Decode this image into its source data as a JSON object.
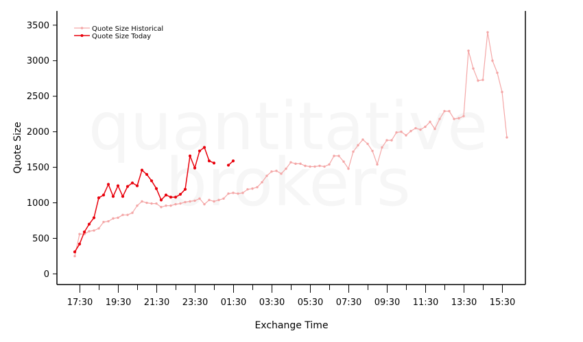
{
  "watermark": {
    "line1": "quantitative",
    "line2": "brokers"
  },
  "chart_data": {
    "type": "line",
    "title": "",
    "xlabel": "Exchange Time",
    "ylabel": "Quote Size",
    "ylim": [
      -150,
      3700
    ],
    "y_ticks": [
      0,
      500,
      1000,
      1500,
      2000,
      2500,
      3000,
      3500
    ],
    "x_tick_labels": [
      "17:30",
      "19:30",
      "21:30",
      "23:30",
      "01:30",
      "03:30",
      "05:30",
      "07:30",
      "09:30",
      "11:30",
      "13:30",
      "15:30"
    ],
    "x_minor_ticks_per_label": 2,
    "grid": false,
    "legend_position": "top-left",
    "series": [
      {
        "name": "Quote Size Historical",
        "color": "#f4a6a6",
        "values": [
          250,
          560,
          560,
          600,
          610,
          640,
          730,
          740,
          780,
          790,
          830,
          830,
          860,
          960,
          1020,
          1000,
          990,
          990,
          940,
          960,
          960,
          980,
          990,
          1010,
          1020,
          1030,
          1060,
          980,
          1040,
          1020,
          1040,
          1060,
          1130,
          1140,
          1130,
          1140,
          1190,
          1200,
          1220,
          1290,
          1380,
          1440,
          1450,
          1410,
          1480,
          1570,
          1550,
          1550,
          1520,
          1510,
          1510,
          1520,
          1510,
          1540,
          1660,
          1660,
          1580,
          1480,
          1720,
          1810,
          1890,
          1830,
          1730,
          1540,
          1780,
          1880,
          1880,
          1990,
          2000,
          1950,
          2010,
          2050,
          2030,
          2070,
          2140,
          2040,
          2180,
          2290,
          2290,
          2180,
          2190,
          2220,
          3140,
          2890,
          2720,
          2730,
          3400,
          3000,
          2830,
          2560,
          1920
        ]
      },
      {
        "name": "Quote Size Today",
        "color": "#e8000b",
        "values": [
          310,
          420,
          590,
          700,
          790,
          1070,
          1110,
          1260,
          1090,
          1240,
          1090,
          1230,
          1280,
          1240,
          1460,
          1400,
          1310,
          1200,
          1040,
          1110,
          1080,
          1080,
          1120,
          1190,
          1660,
          1490,
          1730,
          1780,
          1590,
          1560,
          null,
          null,
          1530,
          1590
        ]
      }
    ]
  }
}
